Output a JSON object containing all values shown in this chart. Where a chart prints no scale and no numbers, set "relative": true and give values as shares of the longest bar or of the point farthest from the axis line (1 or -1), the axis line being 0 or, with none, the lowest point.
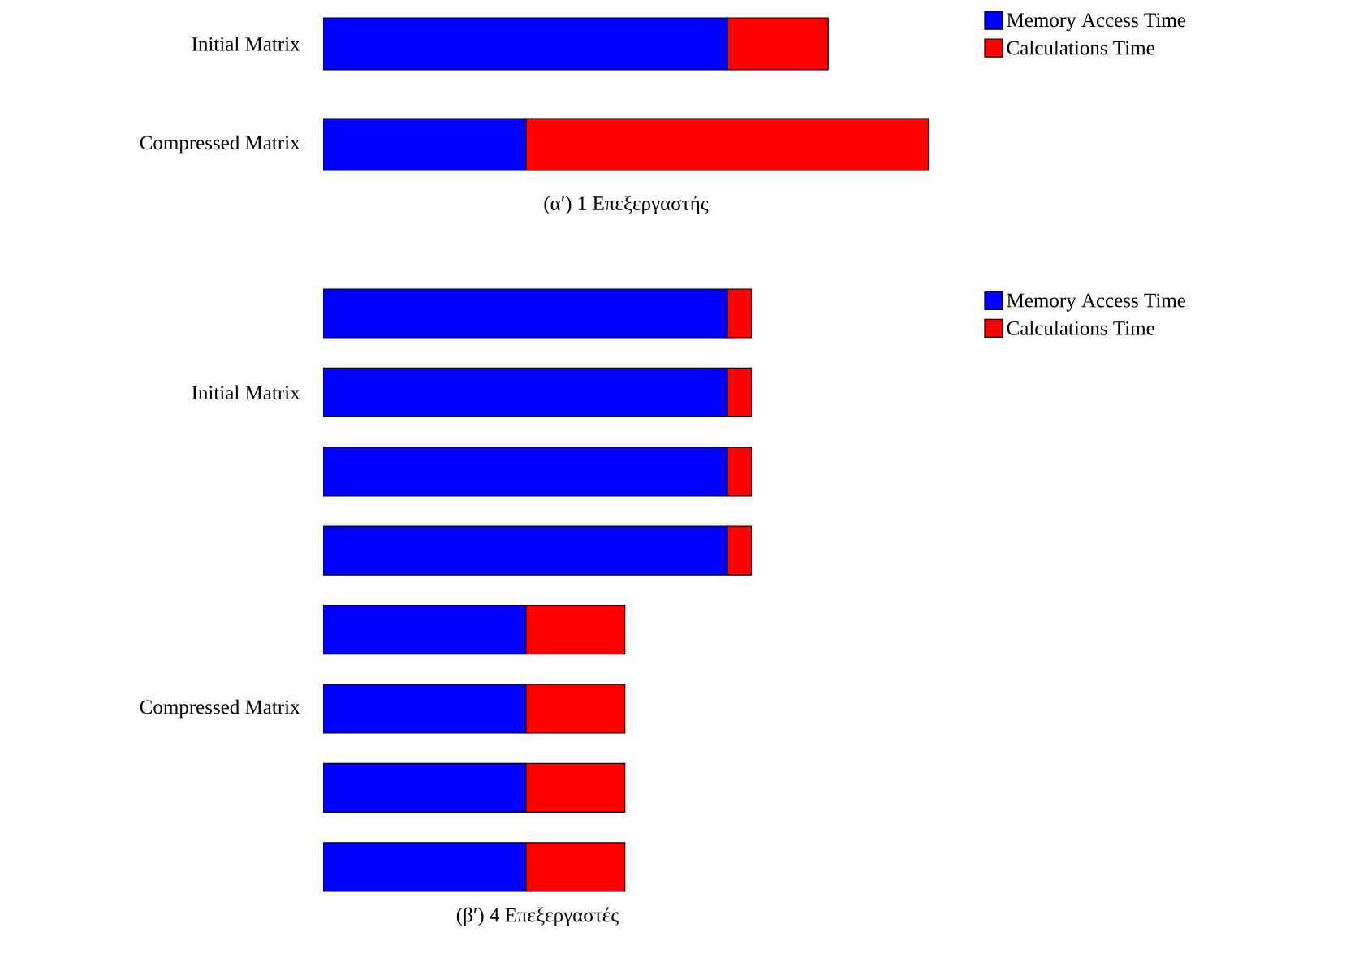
{
  "chart_data": [
    {
      "type": "bar",
      "orientation": "horizontal",
      "stacked": true,
      "relative": true,
      "legend": "top right",
      "title": "(α′) 1 Επεξεργαστής",
      "categories": [
        "Initial Matrix",
        "Compressed Matrix"
      ],
      "series": [
        {
          "name": "Memory Access Time",
          "color": "#0000ff",
          "values": [
            0.668,
            0.335
          ]
        },
        {
          "name": "Calculations Time",
          "color": "#ff0000",
          "values": [
            0.166,
            0.665
          ]
        }
      ]
    },
    {
      "type": "bar",
      "orientation": "horizontal",
      "stacked": true,
      "relative": true,
      "legend": "top right",
      "title": "(β′) 4 Επεξεργαστές",
      "categories": [
        null,
        "Initial Matrix",
        null,
        null,
        null,
        "Compressed Matrix",
        null,
        null
      ],
      "series": [
        {
          "name": "Memory Access Time",
          "color": "#0000ff",
          "values": [
            0.943,
            0.943,
            0.943,
            0.943,
            0.473,
            0.473,
            0.473,
            0.473
          ]
        },
        {
          "name": "Calculations Time",
          "color": "#ff0000",
          "values": [
            0.057,
            0.057,
            0.057,
            0.057,
            0.231,
            0.231,
            0.231,
            0.231
          ]
        }
      ]
    }
  ]
}
